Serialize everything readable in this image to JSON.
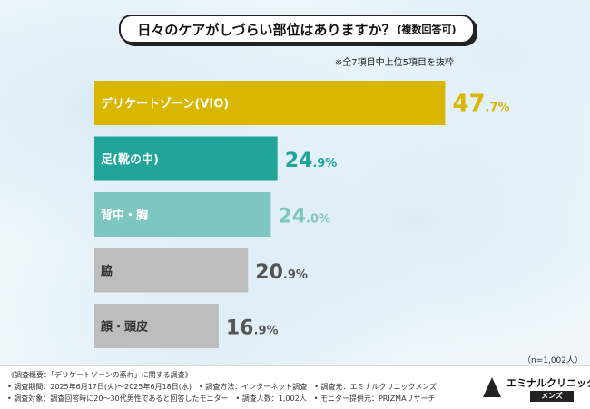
{
  "title": {
    "main": "日々のケアがしづらい部位はありますか？",
    "sub": "(複数回答可)"
  },
  "note": "※全7項目中上位5項目を抜粋",
  "sample_size": "（n=1,002人）",
  "chart_data": {
    "type": "bar",
    "orientation": "horizontal",
    "unit": "%",
    "categories": [
      "デリケートゾーン(VIO)",
      "足(靴の中)",
      "背中・胸",
      "脇",
      "顔・頭皮"
    ],
    "values": [
      47.7,
      24.9,
      24.0,
      20.9,
      16.9
    ],
    "value_labels": [
      "47.7%",
      "24.9%",
      "24.0%",
      "20.9%",
      "16.9%"
    ],
    "bar_colors": [
      "#d9b600",
      "#21a59a",
      "#7ec6c1",
      "#bdbdbd",
      "#bdbdbd"
    ],
    "value_colors": [
      "#d9b600",
      "#21a59a",
      "#7ec6c1",
      "#555555",
      "#555555"
    ],
    "xlim": [
      0,
      50
    ]
  },
  "footer": {
    "lines": [
      "《調査概要：「デリケートゾーンの蒸れ」に関する調査》",
      "• 調査期間：2025年6月17日(火)〜2025年6月18日(水)　• 調査方法：インターネット調査　• 調査元：エミナルクリニックメンズ",
      "• 調査対象：調査回答時に20〜30代男性であると回答したモニター　• 調査人数：1,002人　• モニター提供元：PRIZMAリサーチ"
    ],
    "logo_name": "エミナルクリニック",
    "logo_sub": "メンズ"
  }
}
